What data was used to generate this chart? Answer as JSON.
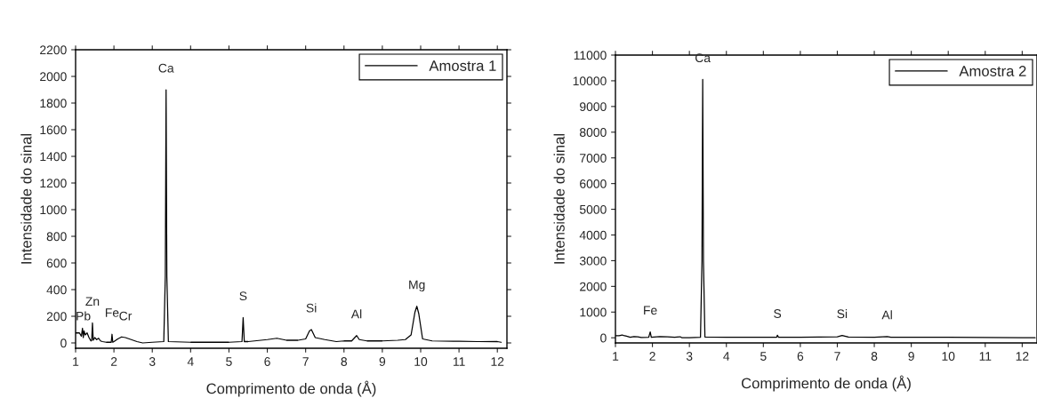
{
  "chart_data": [
    {
      "type": "line",
      "xlabel": "Comprimento de onda (Å)",
      "ylabel": "Intensidade do sinal",
      "xlim": [
        1,
        12.25
      ],
      "ylim": [
        -40,
        2200
      ],
      "xticks": [
        1,
        2,
        3,
        4,
        5,
        6,
        7,
        8,
        9,
        10,
        11,
        12
      ],
      "yticks": [
        0,
        200,
        400,
        600,
        800,
        1000,
        1200,
        1400,
        1600,
        1800,
        2000,
        2200
      ],
      "legend": "top right",
      "grid": false,
      "series": [
        {
          "name": "Amostra 1",
          "color": "#000000",
          "x": [
            1.0,
            1.1,
            1.15,
            1.18,
            1.2,
            1.22,
            1.25,
            1.3,
            1.35,
            1.4,
            1.42,
            1.44,
            1.46,
            1.5,
            1.55,
            1.6,
            1.65,
            1.7,
            1.8,
            1.93,
            1.95,
            1.97,
            2.0,
            2.1,
            2.2,
            2.3,
            2.4,
            2.5,
            2.6,
            2.75,
            3.0,
            3.3,
            3.34,
            3.36,
            3.38,
            3.42,
            4.0,
            5.0,
            5.34,
            5.37,
            5.4,
            5.5,
            6.0,
            6.25,
            6.5,
            6.8,
            7.0,
            7.1,
            7.15,
            7.25,
            7.5,
            7.8,
            8.0,
            8.2,
            8.33,
            8.4,
            8.6,
            9.0,
            9.4,
            9.6,
            9.75,
            9.85,
            9.9,
            9.95,
            10.05,
            10.3,
            11.0,
            11.5,
            12.0,
            12.1
          ],
          "values": [
            75,
            75,
            50,
            110,
            40,
            90,
            60,
            75,
            40,
            15,
            20,
            150,
            20,
            40,
            25,
            35,
            15,
            10,
            5,
            5,
            65,
            5,
            10,
            30,
            45,
            40,
            30,
            20,
            10,
            0,
            5,
            10,
            500,
            1900,
            500,
            10,
            5,
            5,
            10,
            190,
            10,
            10,
            25,
            35,
            20,
            20,
            30,
            90,
            100,
            40,
            25,
            10,
            15,
            15,
            55,
            25,
            15,
            15,
            20,
            25,
            60,
            230,
            275,
            220,
            30,
            15,
            12,
            10,
            10,
            5
          ]
        }
      ],
      "annotations": [
        {
          "text": "Pb",
          "x": 1.2,
          "y": 40
        },
        {
          "text": "Zn",
          "x": 1.44,
          "y": 150
        },
        {
          "text": "Fe",
          "x": 1.95,
          "y": 65
        },
        {
          "text": "Cr",
          "x": 2.3,
          "y": 40
        },
        {
          "text": "Ca",
          "x": 3.36,
          "y": 1900
        },
        {
          "text": "S",
          "x": 5.37,
          "y": 190
        },
        {
          "text": "Si",
          "x": 7.15,
          "y": 100
        },
        {
          "text": "Al",
          "x": 8.33,
          "y": 55
        },
        {
          "text": "Mg",
          "x": 9.9,
          "y": 275
        }
      ]
    },
    {
      "type": "line",
      "xlabel": "Comprimento de onda (Å)",
      "ylabel": "Intensidade do sinal",
      "xlim": [
        1,
        12.4
      ],
      "ylim": [
        -200,
        11000
      ],
      "xticks": [
        1,
        2,
        3,
        4,
        5,
        6,
        7,
        8,
        9,
        10,
        11,
        12
      ],
      "yticks": [
        0,
        1000,
        2000,
        3000,
        4000,
        5000,
        6000,
        7000,
        8000,
        9000,
        10000,
        11000
      ],
      "legend": "top right",
      "grid": false,
      "series": [
        {
          "name": "Amostra 2",
          "color": "#000000",
          "x": [
            1.0,
            1.1,
            1.18,
            1.22,
            1.3,
            1.4,
            1.5,
            1.6,
            1.7,
            1.9,
            1.94,
            1.97,
            2.2,
            2.4,
            2.6,
            2.75,
            2.8,
            3.0,
            3.3,
            3.34,
            3.36,
            3.38,
            3.42,
            4.0,
            5.0,
            5.36,
            5.38,
            5.41,
            6.0,
            7.0,
            7.13,
            7.3,
            8.0,
            8.35,
            8.45,
            9.0,
            10.0,
            11.0,
            12.0,
            12.35
          ],
          "values": [
            80,
            80,
            110,
            90,
            60,
            20,
            50,
            40,
            10,
            20,
            230,
            20,
            50,
            40,
            20,
            40,
            0,
            0,
            20,
            3000,
            10050,
            3000,
            30,
            20,
            20,
            20,
            100,
            20,
            20,
            40,
            90,
            30,
            20,
            50,
            20,
            20,
            20,
            10,
            0,
            0
          ]
        }
      ],
      "annotations": [
        {
          "text": "Fe",
          "x": 1.94,
          "y": 230
        },
        {
          "text": "Ca",
          "x": 3.36,
          "y": 10050
        },
        {
          "text": "S",
          "x": 5.38,
          "y": 100
        },
        {
          "text": "Si",
          "x": 7.13,
          "y": 90
        },
        {
          "text": "Al",
          "x": 8.35,
          "y": 50
        }
      ]
    }
  ]
}
